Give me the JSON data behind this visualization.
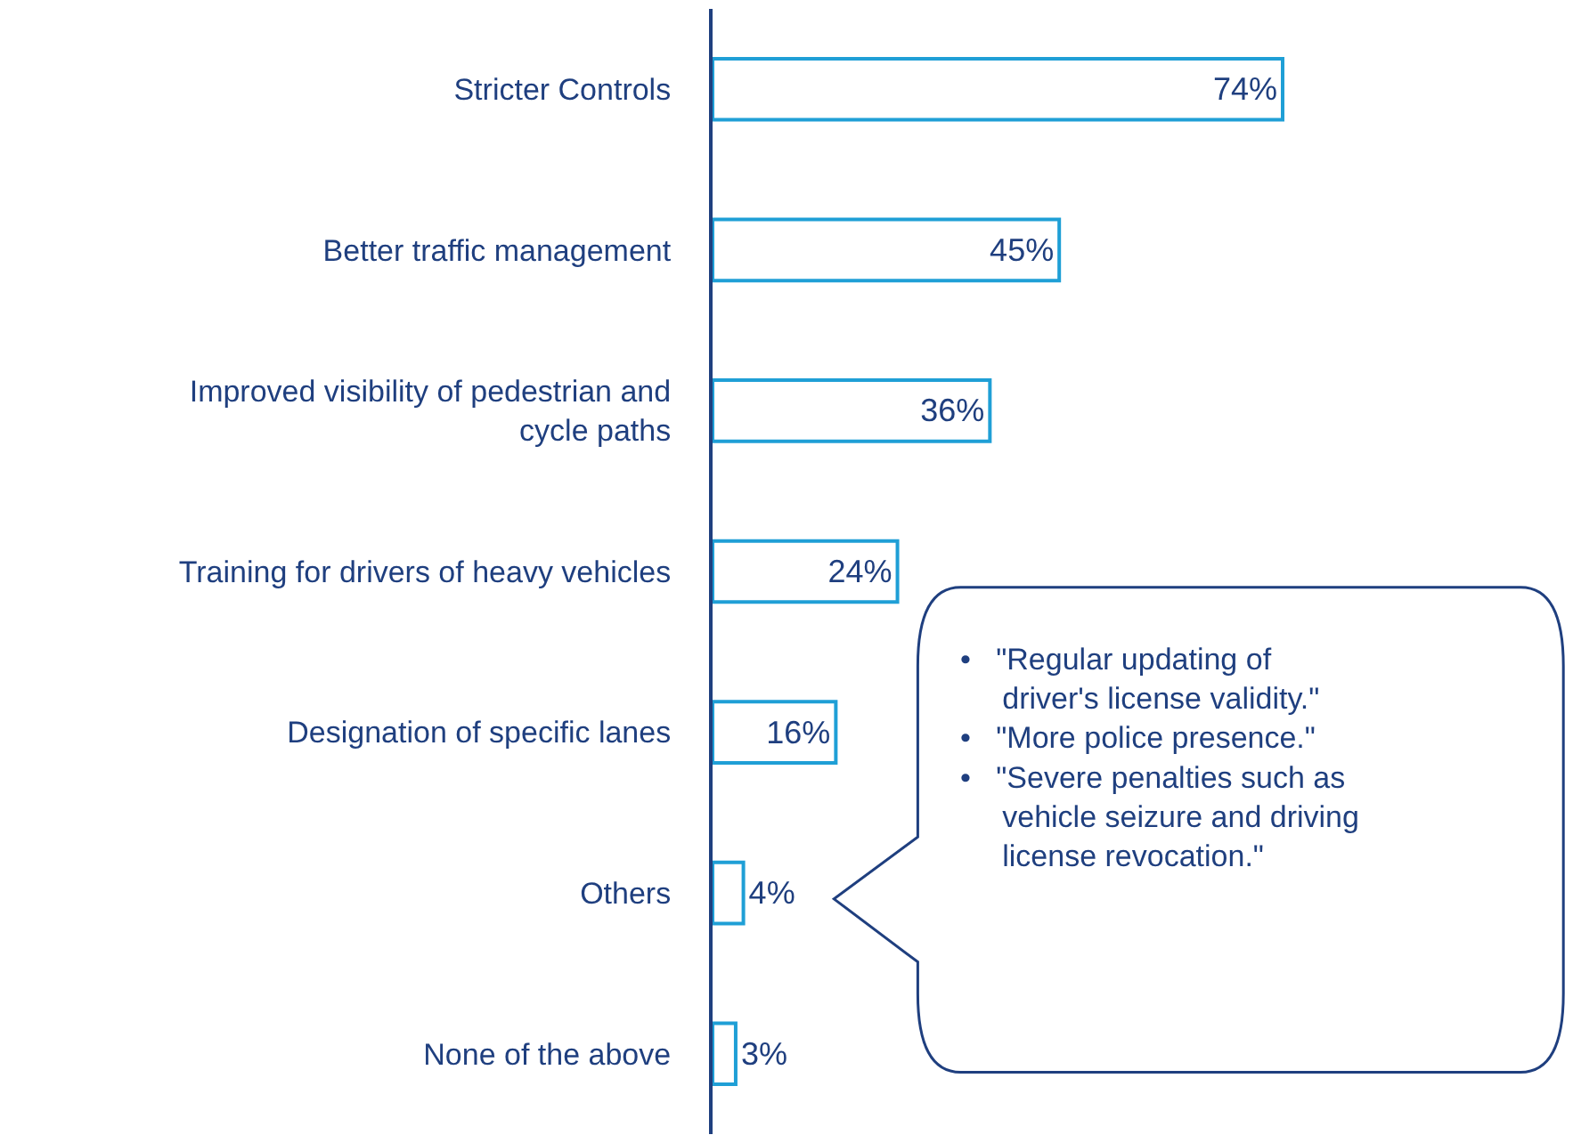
{
  "chart_data": {
    "type": "bar",
    "orientation": "horizontal",
    "categories": [
      "Stricter Controls",
      "Better traffic management",
      "Improved visibility of pedestrian and\ncycle paths",
      "Training for drivers of heavy vehicles",
      "Designation of specific lanes",
      "Others",
      "None of the above"
    ],
    "values": [
      74,
      45,
      36,
      24,
      16,
      4,
      3
    ],
    "value_labels": [
      "74%",
      "45%",
      "36%",
      "24%",
      "16%",
      "4%",
      "3%"
    ],
    "color": "#1f9fd6",
    "annotations": [
      "•   \"Regular updating of\n     driver's license validity.\"\n•   \"More police presence.\"\n•   \"Severe penalties such as\n     vehicle seizure and driving\n     license revocation.\""
    ],
    "legend": false
  }
}
